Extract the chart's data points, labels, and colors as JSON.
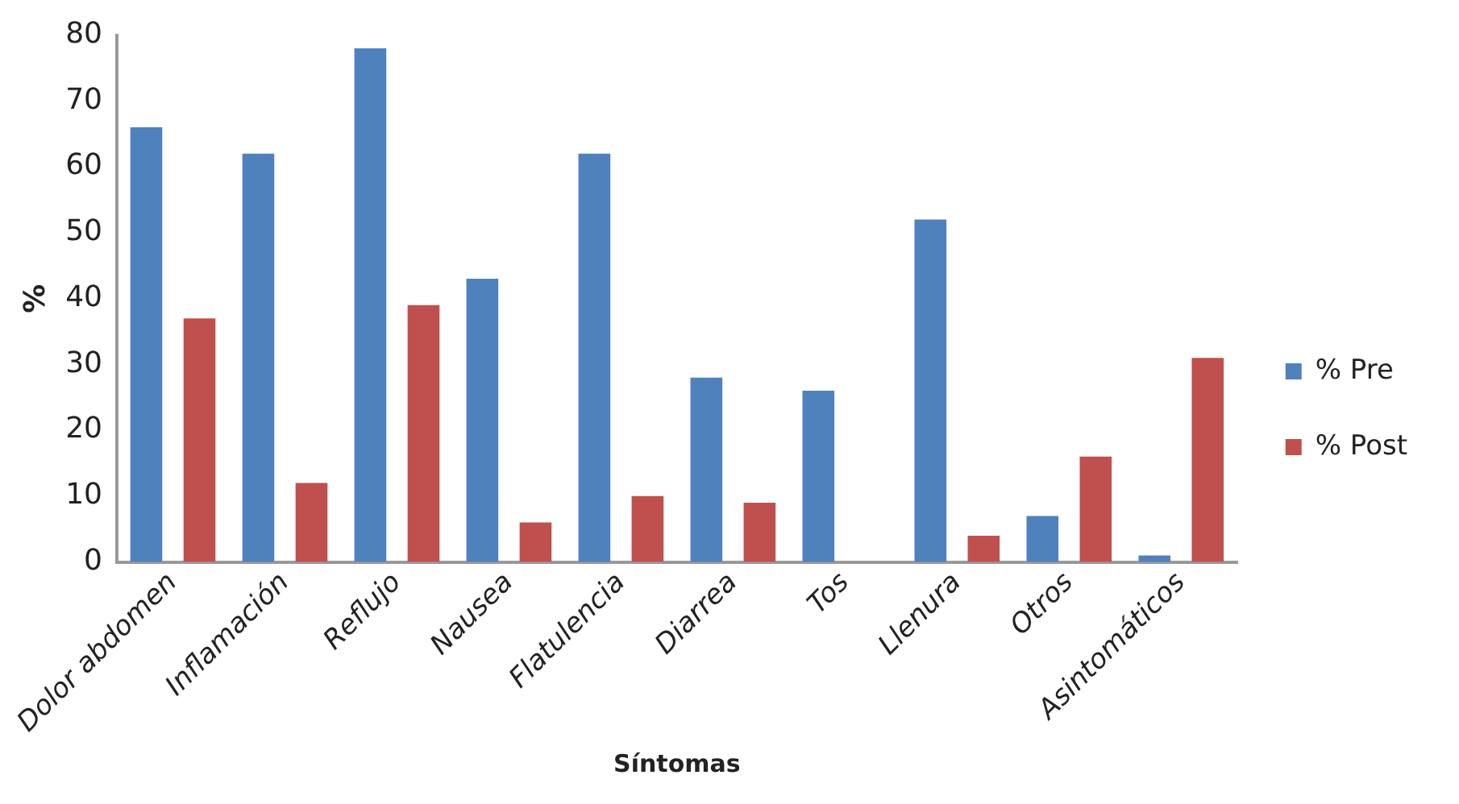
{
  "chart_data": {
    "type": "bar",
    "xlabel": "Síntomas",
    "ylabel": "%",
    "categories": [
      "Dolor abdomen",
      "Inflamación",
      "Reflujo",
      "Nausea",
      "Flatulencia",
      "Diarrea",
      "Tos",
      "Llenura",
      "Otros",
      "Asintomáticos"
    ],
    "series": [
      {
        "name": "% Pre",
        "color": "#4f81bd",
        "values": [
          66,
          62,
          78,
          43,
          62,
          28,
          26,
          52,
          7,
          1
        ]
      },
      {
        "name": "% Post",
        "color": "#c0504d",
        "values": [
          37,
          12,
          39,
          6,
          10,
          9,
          0,
          4,
          16,
          31
        ]
      }
    ],
    "ylim": [
      0,
      80
    ],
    "yticks": [
      0,
      10,
      20,
      30,
      40,
      50,
      60,
      70,
      80
    ],
    "grid": false,
    "legend": "right"
  }
}
